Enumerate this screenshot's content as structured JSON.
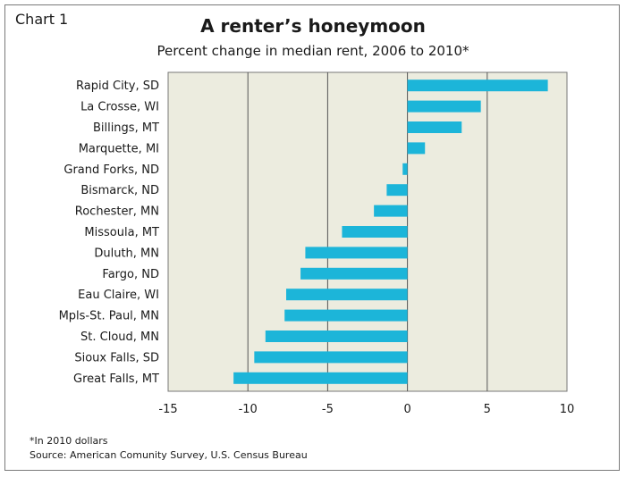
{
  "chart_label": "Chart 1",
  "footnote": "*In 2010 dollars",
  "source": "Source: American Comunity Survey, U.S. Census Bureau",
  "colors": {
    "bar": "#1cb5d9",
    "plot_background": "#ececdf",
    "grid": "#555555"
  },
  "chart_data": {
    "type": "bar",
    "orientation": "horizontal",
    "title": "A renter’s honeymoon",
    "subtitle": "Percent change in median rent, 2006 to 2010*",
    "xlabel": "",
    "ylabel": "",
    "categories": [
      "Rapid City, SD",
      "La Crosse, WI",
      "Billings, MT",
      "Marquette, MI",
      "Grand Forks, ND",
      "Bismarck, ND",
      "Rochester, MN",
      "Missoula, MT",
      "Duluth, MN",
      "Fargo, ND",
      "Eau Claire, WI",
      "Mpls-St. Paul, MN",
      "St. Cloud, MN",
      "Sioux Falls, SD",
      "Great Falls, MT"
    ],
    "values": [
      8.8,
      4.6,
      3.4,
      1.1,
      -0.3,
      -1.3,
      -2.1,
      -4.1,
      -6.4,
      -6.7,
      -7.6,
      -7.7,
      -8.9,
      -9.6,
      -10.9
    ],
    "xlim": [
      -15,
      10
    ],
    "xticks": [
      -15,
      -10,
      -5,
      0,
      5,
      10
    ],
    "grid": true
  }
}
